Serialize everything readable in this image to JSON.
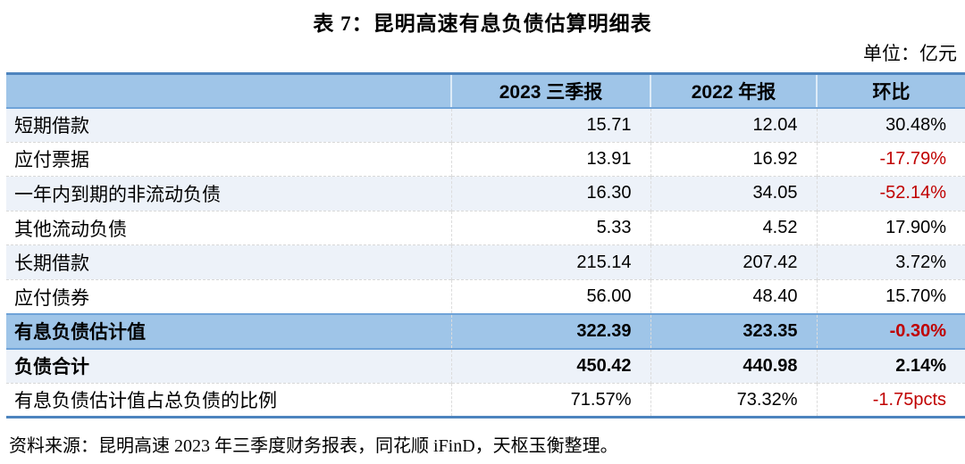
{
  "title": "表 7：昆明高速有息负债估算明细表",
  "unit_label": "单位：亿元",
  "table": {
    "columns": [
      "",
      "2023 三季报",
      "2022 年报",
      "环比"
    ],
    "rows": [
      {
        "label": "短期借款",
        "v2023": "15.71",
        "v2022": "12.04",
        "chg": "30.48%",
        "neg": false,
        "bold": false,
        "shade": "alt"
      },
      {
        "label": "应付票据",
        "v2023": "13.91",
        "v2022": "16.92",
        "chg": "-17.79%",
        "neg": true,
        "bold": false,
        "shade": "white"
      },
      {
        "label": "一年内到期的非流动负债",
        "v2023": "16.30",
        "v2022": "34.05",
        "chg": "-52.14%",
        "neg": true,
        "bold": false,
        "shade": "alt"
      },
      {
        "label": "其他流动负债",
        "v2023": "5.33",
        "v2022": "4.52",
        "chg": "17.90%",
        "neg": false,
        "bold": false,
        "shade": "white"
      },
      {
        "label": "长期借款",
        "v2023": "215.14",
        "v2022": "207.42",
        "chg": "3.72%",
        "neg": false,
        "bold": false,
        "shade": "alt"
      },
      {
        "label": "应付债券",
        "v2023": "56.00",
        "v2022": "48.40",
        "chg": "15.70%",
        "neg": false,
        "bold": false,
        "shade": "white"
      },
      {
        "label": "有息负债估计值",
        "v2023": "322.39",
        "v2022": "323.35",
        "chg": "-0.30%",
        "neg": true,
        "bold": true,
        "shade": "highlight"
      },
      {
        "label": "负债合计",
        "v2023": "450.42",
        "v2022": "440.98",
        "chg": "2.14%",
        "neg": false,
        "bold": true,
        "shade": "alt"
      },
      {
        "label": "有息负债估计值占总负债的比例",
        "v2023": "71.57%",
        "v2022": "73.32%",
        "chg": "-1.75pcts",
        "neg": true,
        "bold": false,
        "shade": "white"
      }
    ]
  },
  "source": "资料来源：昆明高速 2023 年三季度财务报表，同花顺 iFinD，天枢玉衡整理。",
  "colors": {
    "header_blue": "#9FC5E8",
    "row_alt": "#EDF2F9",
    "border_strong": "#4D84BE",
    "border_mid": "#6FA3D8",
    "negative": "#C00000",
    "text": "#000000"
  }
}
